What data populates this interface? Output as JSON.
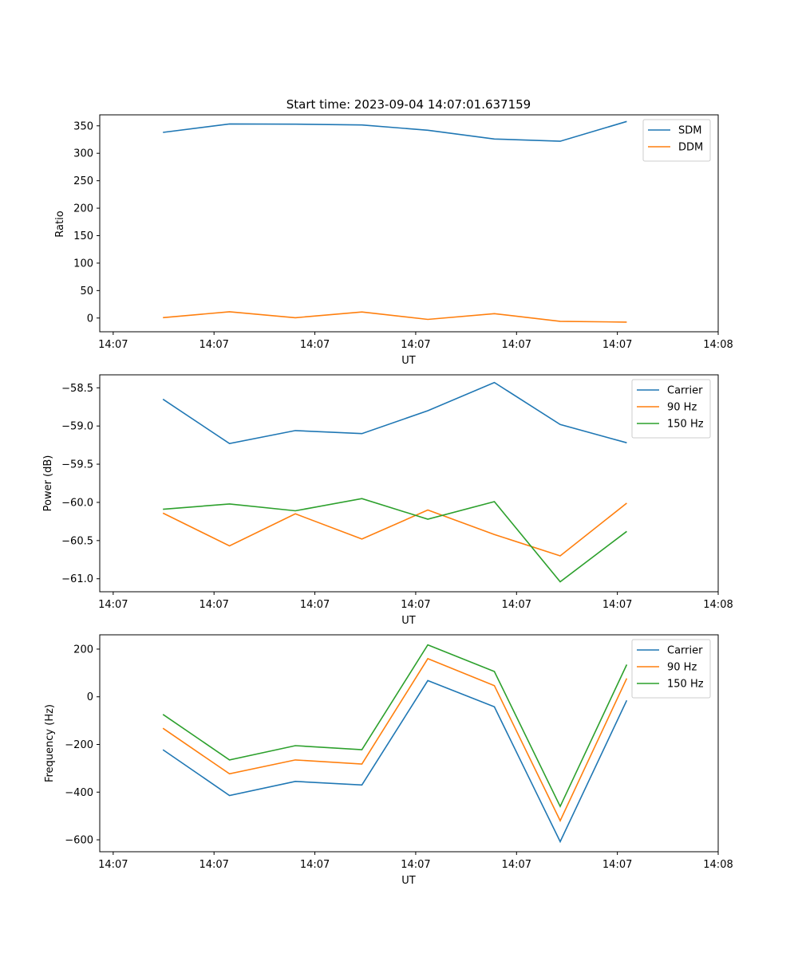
{
  "chart_data": [
    {
      "type": "line",
      "title": "Start time: 2023-09-04 14:07:01.637159",
      "xlabel": "UT",
      "ylabel": "Ratio",
      "xlim": [
        -0.2,
        9.0
      ],
      "ylim": [
        -25,
        370
      ],
      "xticks": [
        0,
        1.5,
        3,
        4.5,
        6,
        7.5,
        9
      ],
      "xticklabels": [
        "14:07",
        "14:07",
        "14:07",
        "14:07",
        "14:07",
        "14:07",
        "14:08"
      ],
      "yticks": [
        0,
        50,
        100,
        150,
        200,
        250,
        300,
        350
      ],
      "yticklabels": [
        "0",
        "50",
        "100",
        "150",
        "200",
        "250",
        "300",
        "350"
      ],
      "x": [
        0.74,
        1.73,
        2.71,
        3.7,
        4.68,
        5.67,
        6.65,
        7.64
      ],
      "series": [
        {
          "name": "SDM",
          "color": "#1f77b4",
          "values": [
            338,
            353.5,
            353,
            351.5,
            342,
            326,
            322,
            358
          ]
        },
        {
          "name": "DDM",
          "color": "#ff7f0e",
          "values": [
            0.7,
            11.5,
            0.5,
            11,
            -2.5,
            8,
            -6,
            -7.5
          ]
        }
      ],
      "legend": "top-right"
    },
    {
      "type": "line",
      "title": "",
      "xlabel": "UT",
      "ylabel": "Power (dB)",
      "xlim": [
        -0.2,
        9.0
      ],
      "ylim": [
        -61.17,
        -58.33
      ],
      "xticks": [
        0,
        1.5,
        3,
        4.5,
        6,
        7.5,
        9
      ],
      "xticklabels": [
        "14:07",
        "14:07",
        "14:07",
        "14:07",
        "14:07",
        "14:07",
        "14:08"
      ],
      "yticks": [
        -61.0,
        -60.5,
        -60.0,
        -59.5,
        -59.0,
        -58.5
      ],
      "yticklabels": [
        "−61.0",
        "−60.5",
        "−60.0",
        "−59.5",
        "−59.0",
        "−58.5"
      ],
      "x": [
        0.74,
        1.73,
        2.71,
        3.7,
        4.68,
        5.67,
        6.65,
        7.64
      ],
      "series": [
        {
          "name": "Carrier",
          "color": "#1f77b4",
          "values": [
            -58.65,
            -59.23,
            -59.06,
            -59.1,
            -58.8,
            -58.43,
            -58.98,
            -59.22
          ]
        },
        {
          "name": "90 Hz",
          "color": "#ff7f0e",
          "values": [
            -60.14,
            -60.57,
            -60.15,
            -60.48,
            -60.1,
            -60.42,
            -60.7,
            -60.01
          ]
        },
        {
          "name": "150 Hz",
          "color": "#2ca02c",
          "values": [
            -60.09,
            -60.02,
            -60.11,
            -59.95,
            -60.22,
            -59.99,
            -61.04,
            -60.38
          ]
        }
      ],
      "legend": "top-right"
    },
    {
      "type": "line",
      "title": "",
      "xlabel": "UT",
      "ylabel": "Frequency (Hz)",
      "xlim": [
        -0.2,
        9.0
      ],
      "ylim": [
        -650,
        260
      ],
      "xticks": [
        0,
        1.5,
        3,
        4.5,
        6,
        7.5,
        9
      ],
      "xticklabels": [
        "14:07",
        "14:07",
        "14:07",
        "14:07",
        "14:07",
        "14:07",
        "14:08"
      ],
      "yticks": [
        -600,
        -400,
        -200,
        0,
        200
      ],
      "yticklabels": [
        "−600",
        "−400",
        "−200",
        "0",
        "200"
      ],
      "x": [
        0.74,
        1.73,
        2.71,
        3.7,
        4.68,
        5.67,
        6.65,
        7.64
      ],
      "series": [
        {
          "name": "Carrier",
          "color": "#1f77b4",
          "values": [
            -222,
            -414,
            -355,
            -370,
            68,
            -42,
            -608,
            -15
          ]
        },
        {
          "name": "90 Hz",
          "color": "#ff7f0e",
          "values": [
            -132,
            -323,
            -265,
            -282,
            160,
            47,
            -520,
            77
          ]
        },
        {
          "name": "150 Hz",
          "color": "#2ca02c",
          "values": [
            -74,
            -265,
            -205,
            -222,
            218,
            106,
            -460,
            135
          ]
        }
      ],
      "legend": "top-right"
    }
  ]
}
